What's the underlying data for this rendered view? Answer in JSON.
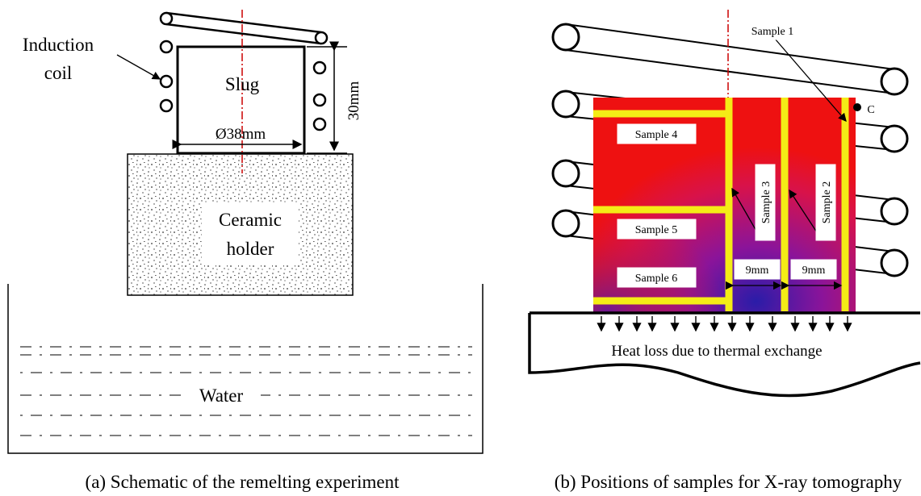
{
  "panel_a": {
    "induction_coil_label_line1": "Induction",
    "induction_coil_label_line2": "coil",
    "slug_label": "Slug",
    "diameter_label": "Ø38mm",
    "height_label": "30mm",
    "holder_label_line1": "Ceramic",
    "holder_label_line2": "holder",
    "water_label": "Water",
    "caption": "(a) Schematic of  the remelting experiment"
  },
  "panel_b": {
    "sample1_label": "Sample 1",
    "sample2_label": "Sample 2",
    "sample3_label": "Sample 3",
    "sample4_label": "Sample 4",
    "sample5_label": "Sample  5",
    "sample6_label": "Sample  6",
    "point_c_label": "C",
    "spacing_left_label": "9mm",
    "spacing_right_label": "9mm",
    "heat_loss_label": "Heat loss due to thermal exchange",
    "caption": "(b) Positions  of samples  for X-ray tomography"
  },
  "colors": {
    "slug_hot": "#ee1111",
    "slug_gradient_mid": "#b0148a",
    "slug_cold": "#2a1ca8",
    "cut_lines": "#f4ec16",
    "axis_line": "#cc0000"
  }
}
